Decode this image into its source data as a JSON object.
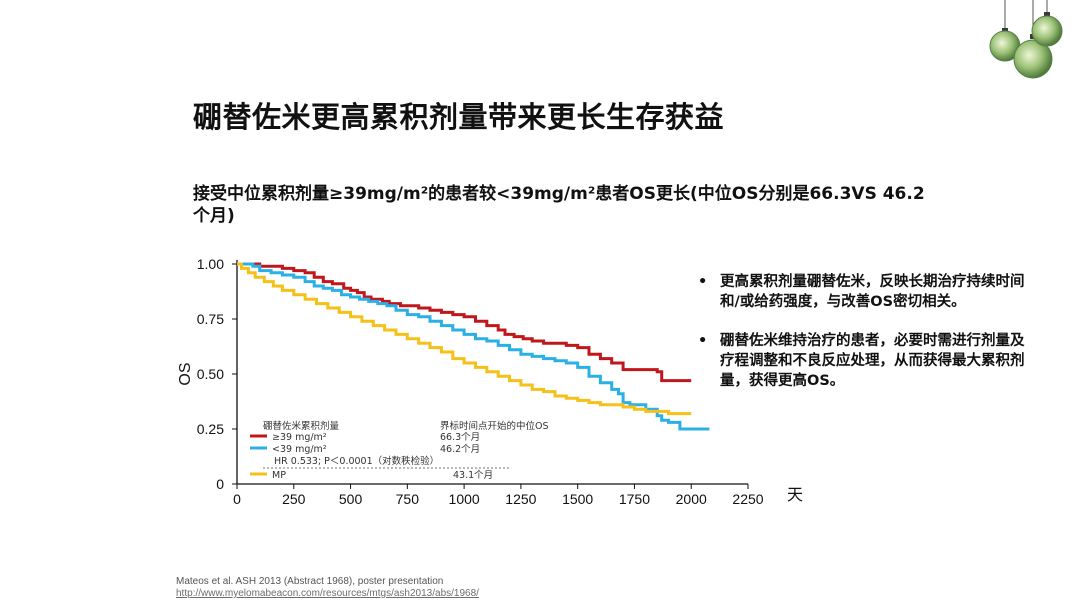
{
  "slide": {
    "title": "硼替佐米更高累积剂量带来更长生存获益",
    "subtitle_lines": [
      "接受中位累积剂量≥39mg/m²的患者较<39mg/m²患者OS更长(中位OS分别是66.3VS  46.2",
      "个月)"
    ],
    "bullets": [
      "更高累积剂量硼替佐米，反映长期治疗持续时间和/或给药强度，与改善OS密切相关。",
      "硼替佐米维持治疗的患者，必要时需进行剂量及疗程调整和不良反应处理，从而获得最大累积剂量，获得更高OS。"
    ],
    "bullet_symbol": "•",
    "reference_line1": "Mateos et al. ASH 2013 (Abstract 1968), poster presentation",
    "reference_url": "http://www.myelomabeacon.com/resources/mtgs/ash2013/abs/1968/"
  },
  "chart_data": {
    "type": "line",
    "ylabel": "OS",
    "xlabel": "天",
    "xlim": [
      0,
      2250
    ],
    "ylim": [
      0,
      1
    ],
    "x_ticks": [
      0,
      250,
      500,
      750,
      1000,
      1250,
      1500,
      1750,
      2000,
      2250
    ],
    "y_ticks": [
      0,
      0.25,
      0.5,
      0.75,
      1.0
    ],
    "y_tick_labels": [
      "0",
      "0.25",
      "0.50",
      "0.75",
      "1.00"
    ],
    "grid": false,
    "legend": {
      "placement": "bottom-left",
      "header_left": "硼替佐米累积剂量",
      "header_right": "界标时间点开始的中位OS",
      "hr_text": "HR 0.533; P＜0.0001（对数秩检验）"
    },
    "colors": {
      "high": "#c0171d",
      "low": "#2bb0e6",
      "mp": "#f5c018",
      "axis": "#111111"
    },
    "series": [
      {
        "name": "≥39 mg/m²",
        "median": "66.3个月",
        "color": "#c0171d",
        "x": [
          0,
          60,
          100,
          170,
          200,
          250,
          300,
          340,
          380,
          420,
          470,
          500,
          530,
          560,
          590,
          640,
          670,
          720,
          760,
          800,
          850,
          900,
          950,
          1000,
          1050,
          1100,
          1150,
          1180,
          1220,
          1260,
          1300,
          1350,
          1400,
          1450,
          1500,
          1550,
          1600,
          1650,
          1700,
          1750,
          1800,
          1850,
          1870,
          1950,
          2000
        ],
        "y": [
          1.0,
          1.0,
          0.99,
          0.99,
          0.98,
          0.97,
          0.96,
          0.94,
          0.92,
          0.91,
          0.89,
          0.88,
          0.87,
          0.85,
          0.84,
          0.83,
          0.82,
          0.81,
          0.81,
          0.8,
          0.79,
          0.78,
          0.77,
          0.76,
          0.74,
          0.72,
          0.7,
          0.68,
          0.67,
          0.66,
          0.65,
          0.64,
          0.64,
          0.63,
          0.62,
          0.59,
          0.57,
          0.55,
          0.52,
          0.52,
          0.52,
          0.51,
          0.47,
          0.47,
          0.47
        ]
      },
      {
        "name": "<39 mg/m²",
        "median": "46.2个月",
        "color": "#2bb0e6",
        "x": [
          0,
          30,
          70,
          100,
          150,
          200,
          250,
          300,
          340,
          380,
          420,
          460,
          500,
          540,
          580,
          620,
          660,
          700,
          750,
          800,
          850,
          900,
          950,
          1000,
          1050,
          1100,
          1150,
          1200,
          1250,
          1300,
          1350,
          1400,
          1450,
          1500,
          1550,
          1600,
          1650,
          1680,
          1700,
          1730,
          1780,
          1800,
          1850,
          1870,
          1900,
          1950,
          2000,
          2050,
          2080
        ],
        "y": [
          1.0,
          1.0,
          0.99,
          0.97,
          0.96,
          0.95,
          0.94,
          0.92,
          0.9,
          0.89,
          0.88,
          0.86,
          0.85,
          0.84,
          0.83,
          0.82,
          0.81,
          0.79,
          0.77,
          0.76,
          0.74,
          0.72,
          0.7,
          0.68,
          0.66,
          0.65,
          0.63,
          0.61,
          0.59,
          0.58,
          0.57,
          0.56,
          0.55,
          0.53,
          0.49,
          0.46,
          0.43,
          0.41,
          0.37,
          0.36,
          0.36,
          0.34,
          0.31,
          0.29,
          0.28,
          0.25,
          0.25,
          0.25,
          0.25
        ]
      },
      {
        "name": "MP",
        "median": "43.1个月",
        "color": "#f5c018",
        "x": [
          0,
          20,
          50,
          80,
          120,
          160,
          200,
          250,
          300,
          350,
          400,
          450,
          500,
          550,
          600,
          650,
          700,
          750,
          800,
          850,
          900,
          950,
          1000,
          1050,
          1100,
          1150,
          1200,
          1250,
          1300,
          1350,
          1400,
          1450,
          1500,
          1550,
          1600,
          1650,
          1700,
          1750,
          1800,
          1850,
          1900,
          1950,
          2000
        ],
        "y": [
          1.0,
          0.98,
          0.96,
          0.94,
          0.92,
          0.9,
          0.88,
          0.86,
          0.84,
          0.82,
          0.8,
          0.78,
          0.76,
          0.74,
          0.72,
          0.7,
          0.68,
          0.66,
          0.64,
          0.62,
          0.6,
          0.57,
          0.55,
          0.53,
          0.51,
          0.49,
          0.47,
          0.45,
          0.43,
          0.42,
          0.4,
          0.39,
          0.38,
          0.37,
          0.36,
          0.36,
          0.35,
          0.34,
          0.33,
          0.33,
          0.32,
          0.32,
          0.32
        ]
      }
    ]
  }
}
